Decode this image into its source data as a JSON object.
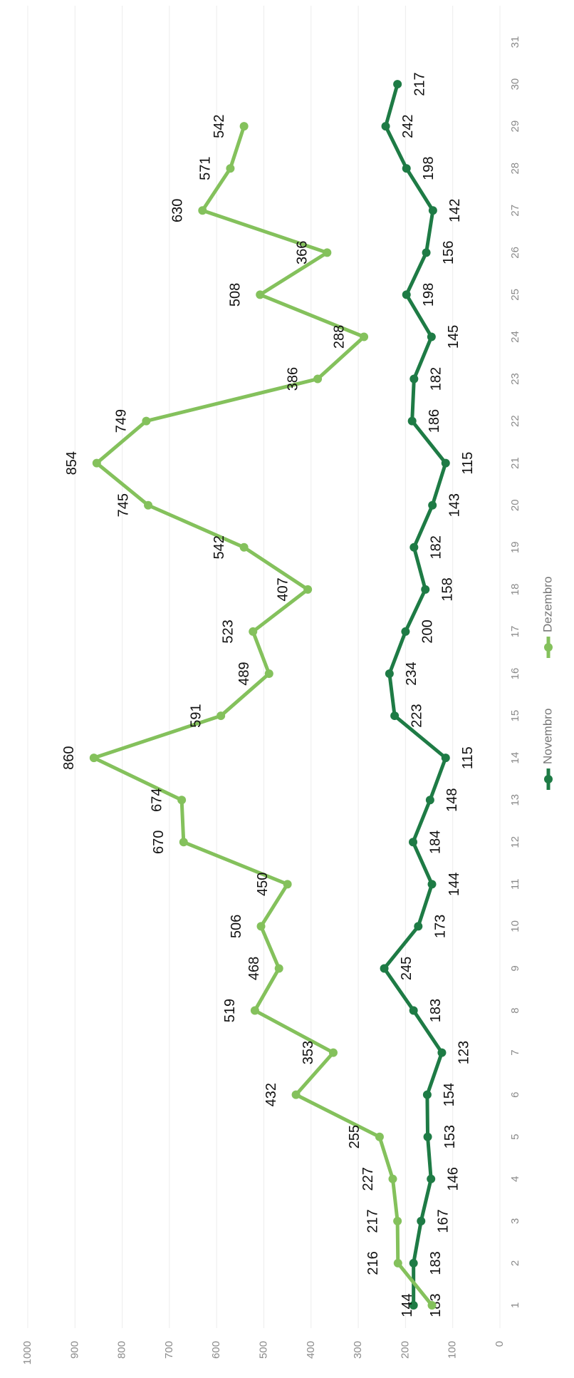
{
  "chart_data": {
    "type": "line",
    "categories": [
      "1",
      "2",
      "3",
      "4",
      "5",
      "6",
      "7",
      "8",
      "9",
      "10",
      "11",
      "12",
      "13",
      "14",
      "15",
      "16",
      "17",
      "18",
      "19",
      "20",
      "21",
      "22",
      "23",
      "24",
      "25",
      "26",
      "27",
      "28",
      "29",
      "30",
      "31"
    ],
    "series": [
      {
        "name": "Novembro",
        "color": "#1e7b45",
        "values": [
          183,
          183,
          167,
          146,
          153,
          154,
          123,
          183,
          245,
          173,
          144,
          184,
          148,
          115,
          223,
          234,
          200,
          158,
          182,
          143,
          115,
          186,
          182,
          145,
          198,
          156,
          142,
          198,
          242,
          217,
          null
        ]
      },
      {
        "name": "Dezembro",
        "color": "#84c15c",
        "values": [
          144,
          216,
          217,
          227,
          255,
          432,
          353,
          519,
          468,
          506,
          450,
          670,
          674,
          860,
          591,
          489,
          523,
          407,
          542,
          745,
          854,
          749,
          386,
          288,
          508,
          366,
          630,
          571,
          542,
          null,
          null
        ]
      }
    ],
    "ylim": [
      0,
      1000
    ],
    "yticks": [
      0,
      100,
      200,
      300,
      400,
      500,
      600,
      700,
      800,
      900,
      1000
    ],
    "grid": true,
    "legend": "bottom"
  }
}
